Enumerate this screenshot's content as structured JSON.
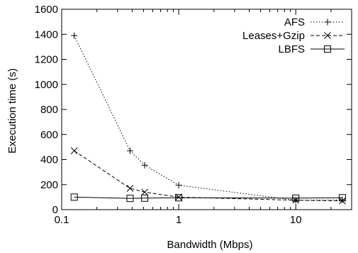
{
  "chart_data": {
    "type": "line",
    "title": "",
    "xlabel": "Bandwidth (Mbps)",
    "ylabel": "Execution time (s)",
    "xscale": "log",
    "xlim": [
      0.1,
      30
    ],
    "ylim": [
      0,
      1600
    ],
    "x_ticks": [
      {
        "value": 0.1,
        "label": "0.1"
      },
      {
        "value": 1,
        "label": "1"
      },
      {
        "value": 10,
        "label": "10"
      }
    ],
    "y_ticks": [
      {
        "value": 0,
        "label": "0"
      },
      {
        "value": 200,
        "label": "200"
      },
      {
        "value": 400,
        "label": "400"
      },
      {
        "value": 600,
        "label": "600"
      },
      {
        "value": 800,
        "label": "800"
      },
      {
        "value": 1000,
        "label": "1000"
      },
      {
        "value": 1200,
        "label": "1200"
      },
      {
        "value": 1400,
        "label": "1400"
      },
      {
        "value": 1600,
        "label": "1600"
      }
    ],
    "grid": false,
    "legend_position": "top-right",
    "series": [
      {
        "name": "AFS",
        "marker": "plus",
        "line_style": "dotted",
        "color": "#000000",
        "x": [
          0.128,
          0.384,
          0.512,
          1,
          10,
          25
        ],
        "y": [
          1390,
          470,
          355,
          195,
          75,
          78
        ]
      },
      {
        "name": "Leases+Gzip",
        "marker": "cross",
        "line_style": "dashed",
        "color": "#000000",
        "x": [
          0.128,
          0.384,
          0.512,
          1,
          10,
          25
        ],
        "y": [
          470,
          170,
          140,
          100,
          75,
          70
        ]
      },
      {
        "name": "LBFS",
        "marker": "square",
        "line_style": "solid",
        "color": "#000000",
        "x": [
          0.128,
          0.384,
          0.512,
          1,
          10,
          25
        ],
        "y": [
          100,
          90,
          92,
          95,
          92,
          95
        ]
      }
    ]
  }
}
